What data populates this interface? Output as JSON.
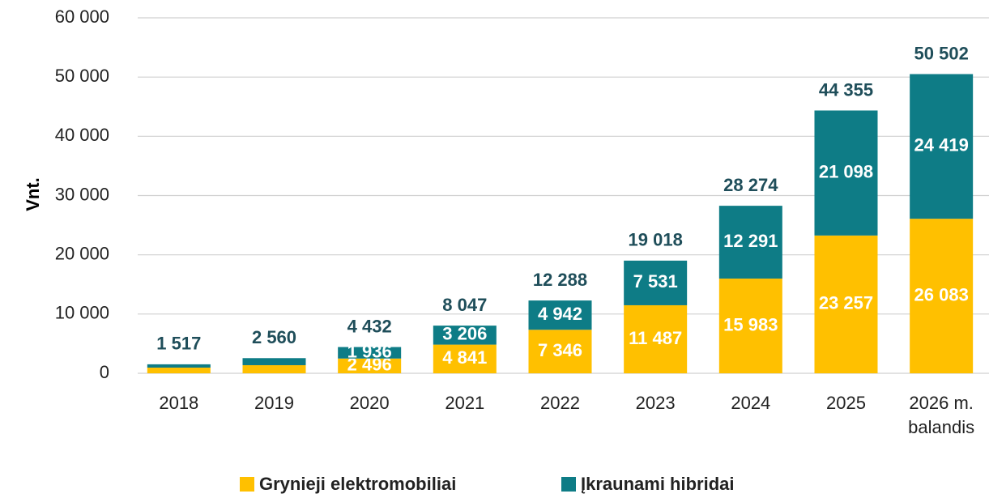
{
  "chart_data": {
    "type": "stacked_bar",
    "ylabel": "Vnt.",
    "categories": [
      "2018",
      "2019",
      "2020",
      "2021",
      "2022",
      "2023",
      "2024",
      "2025",
      "2026 m. balandis"
    ],
    "series": [
      {
        "name": "Grynieji elektromobiliai",
        "color": "#FFC000",
        "values": [
          960,
          1370,
          2496,
          4841,
          7346,
          11487,
          15983,
          23257,
          26083
        ],
        "value_labels": [
          null,
          null,
          "2 496",
          "4 841",
          "7 346",
          "11 487",
          "15 983",
          "23 257",
          "26 083"
        ]
      },
      {
        "name": "Įkraunami hibridai",
        "color": "#0E7C86",
        "values": [
          557,
          1190,
          1936,
          3206,
          4942,
          7531,
          12291,
          21098,
          24419
        ],
        "value_labels": [
          null,
          null,
          "1 936",
          "3 206",
          "4 942",
          "7 531",
          "12 291",
          "21 098",
          "24 419"
        ]
      }
    ],
    "total_labels": [
      "1 517",
      "2 560",
      "4 432",
      "8 047",
      "12 288",
      "19 018",
      "28 274",
      "44 355",
      "50 502"
    ],
    "ylim": [
      0,
      60000
    ],
    "yticks": [
      0,
      {
        "value": 10000,
        "label": "10 000"
      },
      {
        "value": 20000,
        "label": "20 000"
      },
      {
        "value": 30000,
        "label": "30 000"
      },
      {
        "value": 40000,
        "label": "40 000"
      },
      {
        "value": 50000,
        "label": "50 000"
      },
      {
        "value": 60000,
        "label": "60 000"
      }
    ],
    "grid": true,
    "legend": "bottom"
  }
}
